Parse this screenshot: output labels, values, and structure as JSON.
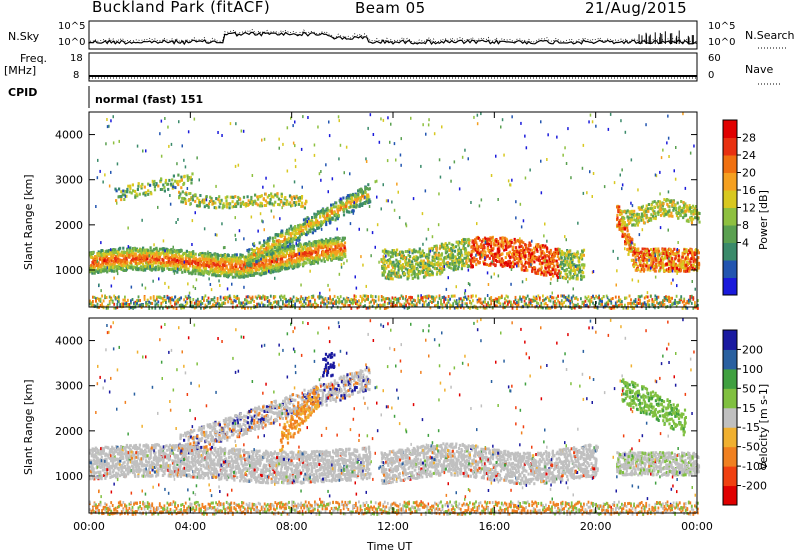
{
  "header": {
    "station": "Buckland Park (fitACF)",
    "beam": "Beam 05",
    "date": "21/Aug/2015"
  },
  "top_panels": {
    "nsky_label": "N.Sky",
    "nsearch_label": "N.Search",
    "noise_tick_high": "10^5",
    "noise_tick_low": "10^0",
    "freq_label_line1": "Freq.",
    "freq_label_line2": "[MHz]",
    "freq_tick_high": "18",
    "freq_tick_low": "8",
    "nave_label": "Nave",
    "nave_tick_high": "60",
    "nave_tick_low": "0",
    "cpid_label": "CPID",
    "cpid_value": "normal (fast) 151"
  },
  "axes": {
    "ylabel": "Slant Range [km]",
    "xlabel": "Time UT",
    "yticks": [
      "4000",
      "3000",
      "2000",
      "1000"
    ],
    "xticks": [
      "00:00",
      "04:00",
      "08:00",
      "12:00",
      "16:00",
      "20:00",
      "00:00"
    ]
  },
  "colors": {
    "power": [
      "#1a1adb",
      "#2255b0",
      "#3a8a6a",
      "#5aa050",
      "#8ec040",
      "#d8c820",
      "#f5a020",
      "#f07010",
      "#e83010",
      "#e00000"
    ],
    "velocity": [
      "#e00000",
      "#f04010",
      "#f08020",
      "#f0b030",
      "#c0c0c0",
      "#80c040",
      "#40a040",
      "#2a60a0",
      "#1a1aa0"
    ]
  },
  "chart_data": [
    {
      "type": "heatmap",
      "title": "Power",
      "xlabel": "Time UT",
      "ylabel": "Slant Range [km]",
      "xlim": [
        0,
        24
      ],
      "ylim": [
        180,
        4500
      ],
      "colorbar": {
        "label": "Power [dB]",
        "range": [
          0,
          32
        ],
        "ticks": [
          "28",
          "24",
          "20",
          "16",
          "12",
          "8",
          "4"
        ]
      },
      "features": [
        {
          "name": "near-range band",
          "t_start": 0,
          "t_end": 10,
          "range_km": [
            850,
            1550
          ],
          "level_db": 26
        },
        {
          "name": "rising echo",
          "t_start": 6.5,
          "t_end": 11,
          "range_km": [
            1100,
            3000
          ],
          "level_db": 18
        },
        {
          "name": "midday band",
          "t_start": 12,
          "t_end": 19.5,
          "range_km": [
            800,
            1700
          ],
          "level_db": 16
        },
        {
          "name": "evening band",
          "t_start": 21,
          "t_end": 24,
          "range_km": [
            1000,
            2600
          ],
          "level_db": 24
        }
      ]
    },
    {
      "type": "heatmap",
      "title": "Velocity",
      "xlabel": "Time UT",
      "ylabel": "Slant Range [km]",
      "xlim": [
        0,
        24
      ],
      "ylim": [
        180,
        4500
      ],
      "colorbar": {
        "label": "Velocity [m s-1]",
        "range": [
          -250,
          250
        ],
        "ticks": [
          "200",
          "100",
          "50",
          "15",
          "-15",
          "-50",
          "-100",
          "-200"
        ]
      },
      "features": [
        {
          "name": "near-zero band",
          "t_start": 0,
          "t_end": 11,
          "range_km": [
            900,
            1700
          ],
          "velocity_ms": 0
        },
        {
          "name": "ground scatter rising",
          "t_start": 3.5,
          "t_end": 11,
          "range_km": [
            1500,
            3200
          ],
          "velocity_ms": 0
        },
        {
          "name": "midday band",
          "t_start": 12,
          "t_end": 20,
          "range_km": [
            900,
            1700
          ],
          "velocity_ms": 0
        },
        {
          "name": "evening positive",
          "t_start": 21,
          "t_end": 24,
          "range_km": [
            1200,
            3000
          ],
          "velocity_ms": 60
        }
      ]
    }
  ]
}
